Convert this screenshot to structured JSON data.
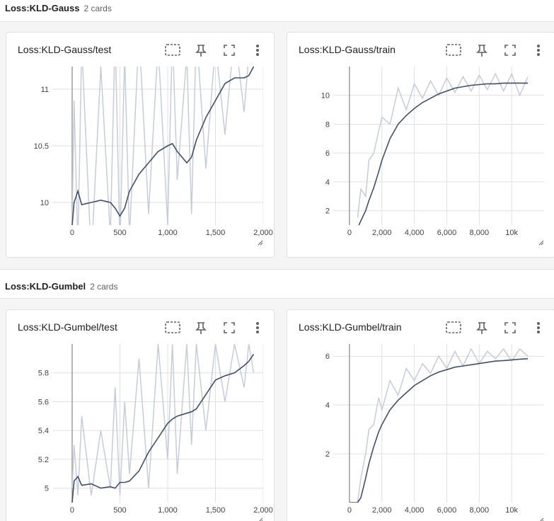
{
  "sections": [
    {
      "title": "Loss:KLD-Gauss",
      "count": "2 cards",
      "cards": [
        {
          "title": "Loss:KLD-Gauss/test",
          "chart": {
            "type": "line",
            "x": [
              0,
              20,
              60,
              100,
              200,
              300,
              400,
              450,
              500,
              550,
              600,
              700,
              800,
              900,
              1000,
              1050,
              1100,
              1200,
              1250,
              1300,
              1400,
              1500,
              1600,
              1700,
              1800,
              1850,
              1900
            ],
            "series": [
              {
                "color": "#c6ccd8",
                "values": [
                  9.8,
                  10.9,
                  9.6,
                  11.4,
                  9.5,
                  11.2,
                  9.7,
                  11.5,
                  9.6,
                  11.3,
                  9.7,
                  11.5,
                  9.9,
                  11.4,
                  9.8,
                  11.5,
                  10.2,
                  11.3,
                  9.9,
                  11.5,
                  10.3,
                  11.4,
                  10.6,
                  11.5,
                  10.8,
                  11.3,
                  11.2
                ]
              },
              {
                "color": "#425066",
                "values": [
                  9.8,
                  10.0,
                  10.1,
                  9.98,
                  10.0,
                  10.02,
                  10.0,
                  9.95,
                  9.88,
                  9.95,
                  10.1,
                  10.25,
                  10.35,
                  10.45,
                  10.5,
                  10.52,
                  10.45,
                  10.35,
                  10.4,
                  10.55,
                  10.75,
                  10.9,
                  11.05,
                  11.1,
                  11.1,
                  11.12,
                  11.2
                ]
              }
            ],
            "xlim": [
              -207,
              2000
            ],
            "ylim": [
              9.8,
              11.2
            ],
            "xticks": [
              0,
              500,
              {
                "value": 1000,
                "label": "1,000"
              },
              {
                "value": 1500,
                "label": "1,500"
              },
              {
                "value": 2000,
                "label": "2,000"
              }
            ],
            "yticks": [
              10,
              10.5,
              11
            ],
            "grid": true
          }
        },
        {
          "title": "Loss:KLD-Gauss/train",
          "chart": {
            "type": "line",
            "x": [
              500,
              700,
              1000,
              1200,
              1500,
              1800,
              2000,
              2500,
              3000,
              3500,
              4000,
              4500,
              5000,
              5500,
              6000,
              6500,
              7000,
              7500,
              8000,
              8500,
              9000,
              9500,
              10000,
              10500,
              11000
            ],
            "series": [
              {
                "color": "#c6ccd8",
                "values": [
                  1.5,
                  3.5,
                  3.0,
                  5.5,
                  6.0,
                  7.5,
                  8.5,
                  8.0,
                  10.5,
                  9.0,
                  10.8,
                  9.8,
                  11.0,
                  10.0,
                  11.2,
                  10.2,
                  11.3,
                  10.3,
                  11.4,
                  10.4,
                  11.5,
                  10.3,
                  11.5,
                  10.0,
                  11.3
                ]
              },
              {
                "color": "#425066",
                "values": [
                  0.8,
                  1.3,
                  2.0,
                  2.7,
                  3.6,
                  4.7,
                  5.5,
                  7.0,
                  8.0,
                  8.6,
                  9.1,
                  9.5,
                  9.8,
                  10.1,
                  10.3,
                  10.5,
                  10.6,
                  10.7,
                  10.75,
                  10.8,
                  10.8,
                  10.85,
                  10.85,
                  10.85,
                  10.85
                ]
              }
            ],
            "xlim": [
              -1000,
              12000
            ],
            "ylim": [
              1,
              12
            ],
            "xticks": [
              0,
              {
                "value": 2000,
                "label": "2,000"
              },
              {
                "value": 4000,
                "label": "4,000"
              },
              {
                "value": 6000,
                "label": "6,000"
              },
              {
                "value": 8000,
                "label": "8,000"
              },
              {
                "value": 10000,
                "label": "10k"
              }
            ],
            "yticks": [
              2,
              4,
              6,
              8,
              10
            ],
            "grid": true
          }
        }
      ]
    },
    {
      "title": "Loss:KLD-Gumbel",
      "count": "2 cards",
      "cards": [
        {
          "title": "Loss:KLD-Gumbel/test",
          "chart": {
            "type": "line",
            "x": [
              0,
              20,
              60,
              100,
              200,
              300,
              400,
              450,
              500,
              550,
              600,
              700,
              800,
              900,
              1000,
              1050,
              1100,
              1200,
              1250,
              1300,
              1400,
              1500,
              1600,
              1700,
              1800,
              1850,
              1900
            ],
            "series": [
              {
                "color": "#c6ccd8",
                "values": [
                  5.0,
                  5.3,
                  4.95,
                  5.5,
                  4.95,
                  5.4,
                  5.0,
                  5.7,
                  4.95,
                  5.6,
                  5.1,
                  5.9,
                  5.0,
                  6.0,
                  5.2,
                  6.0,
                  5.1,
                  6.0,
                  5.3,
                  6.0,
                  5.4,
                  6.0,
                  5.6,
                  6.0,
                  5.7,
                  6.0,
                  5.8
                ]
              },
              {
                "color": "#425066",
                "values": [
                  4.9,
                  5.05,
                  5.08,
                  5.02,
                  5.03,
                  5.0,
                  5.01,
                  5.0,
                  5.04,
                  5.04,
                  5.05,
                  5.12,
                  5.25,
                  5.35,
                  5.45,
                  5.48,
                  5.5,
                  5.52,
                  5.53,
                  5.55,
                  5.65,
                  5.75,
                  5.78,
                  5.8,
                  5.85,
                  5.88,
                  5.93
                ]
              }
            ],
            "xlim": [
              -207,
              2000
            ],
            "ylim": [
              4.9,
              6.0
            ],
            "xticks": [
              0,
              500,
              {
                "value": 1000,
                "label": "1,000"
              },
              {
                "value": 1500,
                "label": "1,500"
              },
              {
                "value": 2000,
                "label": "2,000"
              }
            ],
            "yticks": [
              5,
              5.2,
              5.4,
              5.6,
              5.8
            ],
            "grid": true
          }
        },
        {
          "title": "Loss:KLD-Gumbel/train",
          "chart": {
            "type": "line",
            "x": [
              0,
              500,
              700,
              1000,
              1200,
              1500,
              1800,
              2000,
              2500,
              3000,
              3500,
              4000,
              4500,
              5000,
              5500,
              6000,
              6500,
              7000,
              7500,
              8000,
              8500,
              9000,
              9500,
              10000,
              10500,
              11000
            ],
            "series": [
              {
                "color": "#c6ccd8",
                "values": [
                  0,
                  0,
                  1.0,
                  2.0,
                  3.0,
                  3.2,
                  4.3,
                  3.8,
                  5.0,
                  4.4,
                  5.5,
                  5.0,
                  5.7,
                  5.3,
                  6.0,
                  5.5,
                  6.2,
                  5.6,
                  6.3,
                  5.7,
                  6.2,
                  5.9,
                  6.3,
                  5.8,
                  6.3,
                  6.0
                ]
              },
              {
                "color": "#425066",
                "values": [
                  0,
                  0,
                  0.2,
                  1.0,
                  1.6,
                  2.3,
                  2.9,
                  3.2,
                  3.8,
                  4.2,
                  4.5,
                  4.8,
                  5.0,
                  5.2,
                  5.35,
                  5.45,
                  5.55,
                  5.6,
                  5.65,
                  5.7,
                  5.75,
                  5.8,
                  5.82,
                  5.85,
                  5.88,
                  5.9
                ]
              }
            ],
            "xlim": [
              -1000,
              12000
            ],
            "ylim": [
              0,
              6.5
            ],
            "xticks": [
              0,
              {
                "value": 2000,
                "label": "2,000"
              },
              {
                "value": 4000,
                "label": "4,000"
              },
              {
                "value": 6000,
                "label": "6,000"
              },
              {
                "value": 8000,
                "label": "8,000"
              },
              {
                "value": 10000,
                "label": "10k"
              }
            ],
            "yticks": [
              2,
              4,
              6
            ],
            "grid": true
          }
        }
      ]
    }
  ]
}
